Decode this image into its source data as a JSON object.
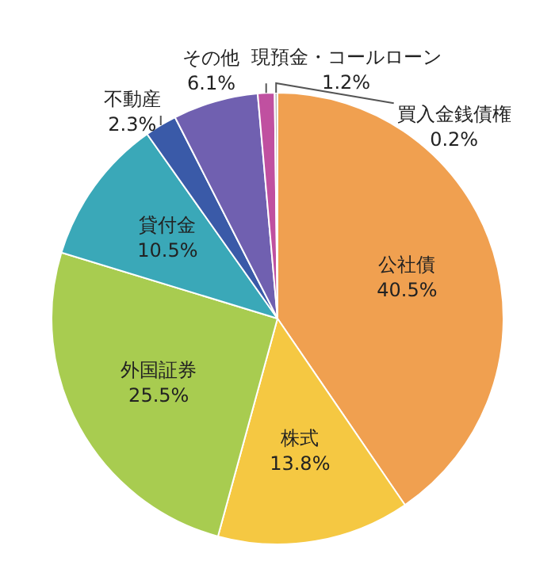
{
  "chart_data": {
    "type": "pie",
    "categories": [
      "公社債",
      "株式",
      "外国証券",
      "貸付金",
      "不動産",
      "その他",
      "現預金・コールローン",
      "買入金銭債権"
    ],
    "values": [
      40.5,
      13.8,
      25.5,
      10.5,
      2.3,
      6.1,
      1.2,
      0.2
    ],
    "colors": [
      "#f0a050",
      "#f5c842",
      "#a8cc50",
      "#3aa8b8",
      "#3a5aa8",
      "#7060b0",
      "#c050a0",
      "#b8b8b8"
    ],
    "value_labels": [
      "40.5%",
      "13.8%",
      "25.5%",
      "10.5%",
      "2.3%",
      "6.1%",
      "1.2%",
      "0.2%"
    ],
    "legend": false
  }
}
